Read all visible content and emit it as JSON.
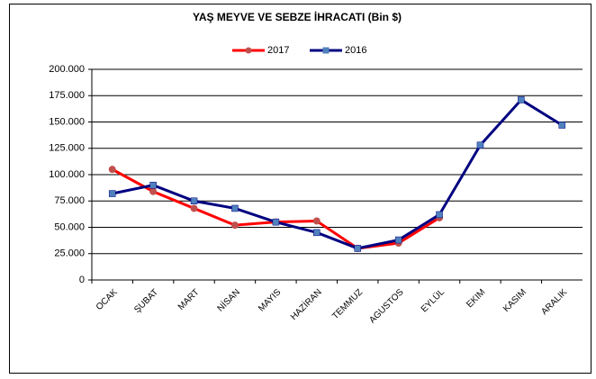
{
  "chart_data": {
    "type": "line",
    "title": "YAŞ MEYVE  VE SEBZE  İHRACATI  (Bin $)",
    "categories": [
      "OCAK",
      "ŞUBAT",
      "MART",
      "NİSAN",
      "MAYIS",
      "HAZİRAN",
      "TEMMUZ",
      "AGUSTOS",
      "EYLÜL",
      "EKIM",
      "KASIM",
      "ARALIK"
    ],
    "series": [
      {
        "name": "2017",
        "color": "#ff0000",
        "marker_color": "#c0504d",
        "marker": "circle",
        "values": [
          105000,
          84000,
          68000,
          52000,
          55000,
          56000,
          30000,
          35000,
          59000,
          null,
          null,
          null
        ]
      },
      {
        "name": "2016",
        "color": "#000080",
        "marker_color": "#4f81bd",
        "marker": "square",
        "values": [
          82000,
          90000,
          75000,
          68000,
          55000,
          45000,
          30000,
          38000,
          62000,
          128000,
          171000,
          147000
        ]
      }
    ],
    "ylim": [
      0,
      200000
    ],
    "yticks": [
      0,
      {
        "value": 25000,
        "label": "25.000"
      },
      {
        "value": 50000,
        "label": "50.000"
      },
      {
        "value": 75000,
        "label": "75.000"
      },
      {
        "value": 100000,
        "label": "100.000"
      },
      {
        "value": 125000,
        "label": "125.000"
      },
      {
        "value": 150000,
        "label": "150.000"
      },
      {
        "value": 175000,
        "label": "175.000"
      },
      {
        "value": 200000,
        "label": "200.000"
      }
    ],
    "grid": true,
    "legend": "top"
  }
}
